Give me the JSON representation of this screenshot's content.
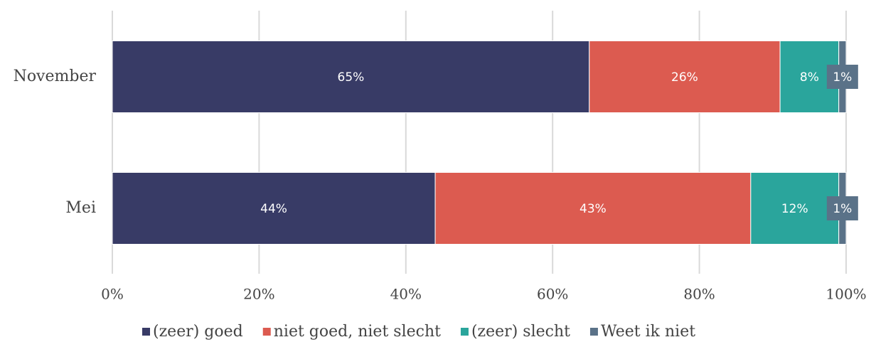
{
  "chart_data": {
    "type": "stacked-bar",
    "orientation": "horizontal",
    "categories": [
      "November",
      "Mei"
    ],
    "series": [
      {
        "name": "(zeer) goed",
        "color": "#383b66",
        "values": [
          65,
          44
        ],
        "value_labels": [
          "65%",
          "44%"
        ]
      },
      {
        "name": "niet goed, niet slecht",
        "color": "#dc5b50",
        "values": [
          26,
          43
        ],
        "value_labels": [
          "26%",
          "43%"
        ]
      },
      {
        "name": "(zeer) slecht",
        "color": "#2aa59c",
        "values": [
          8,
          12
        ],
        "value_labels": [
          "8%",
          "12%"
        ]
      },
      {
        "name": "Weet ik niet",
        "color": "#5a7288",
        "values": [
          1,
          1
        ],
        "value_labels": [
          "1%",
          "1%"
        ]
      }
    ],
    "xlim": [
      0,
      100
    ],
    "xticks": [
      {
        "value": 0,
        "label": "0%"
      },
      {
        "value": 20,
        "label": "20%"
      },
      {
        "value": 40,
        "label": "40%"
      },
      {
        "value": 60,
        "label": "60%"
      },
      {
        "value": 80,
        "label": "80%"
      },
      {
        "value": 100,
        "label": "100%"
      }
    ],
    "grid": true,
    "legend": "bottom"
  }
}
